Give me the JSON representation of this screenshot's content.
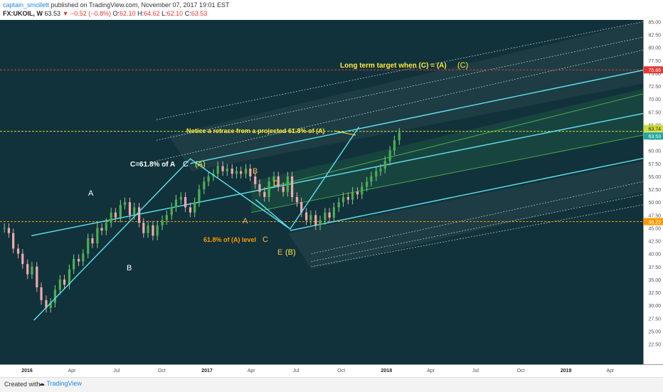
{
  "header": {
    "author": "captain_smollett",
    "published": "published on TradingView.com, November 07, 2017 19:01 EST",
    "symbol": "FX:UKOIL, W",
    "last": "63.53",
    "change": "▼ −0.52 (−0.8%)",
    "open_label": "O:",
    "open": "62.10",
    "high_label": "H:",
    "high": "64.62",
    "low_label": "L:",
    "low": "62.10",
    "close_label": "C:",
    "close": "63.53"
  },
  "footer": {
    "created_with": "Created with",
    "brand": "TradingView"
  },
  "chart_data": {
    "type": "candlestick",
    "title": "",
    "ylim": [
      22.5,
      85.0
    ],
    "y_ticks": [
      "85.00",
      "82.50",
      "80.00",
      "77.50",
      "75.00",
      "72.50",
      "70.00",
      "67.50",
      "65.00",
      "62.50",
      "60.00",
      "57.50",
      "55.00",
      "52.50",
      "50.00",
      "47.50",
      "45.00",
      "42.50",
      "40.00",
      "37.50",
      "35.00",
      "32.50",
      "30.00",
      "27.50",
      "25.00",
      "22.50"
    ],
    "x_ticks": [
      "2016",
      "Apr",
      "Jul",
      "Oct",
      "2017",
      "Apr",
      "Jul",
      "Oct",
      "2018",
      "Apr",
      "Jul",
      "Oct",
      "2019",
      "Apr"
    ],
    "price_tags": [
      {
        "label": "75.66",
        "value": 75.66,
        "color": "#e53935"
      },
      {
        "label": "63.74",
        "value": 63.74,
        "color": "#cddc39"
      },
      {
        "label": "63.53",
        "value": 63.53,
        "color": "#26a69a"
      },
      {
        "label": "46.23",
        "value": 46.23,
        "color": "#ff9800"
      }
    ],
    "horizontal_lines": [
      {
        "value": 75.66,
        "color": "#e53935"
      },
      {
        "value": 63.74,
        "color": "#cddc39"
      },
      {
        "value": 46.23,
        "color": "#ff9800"
      }
    ],
    "annotations": [
      {
        "text": "Long term target when (C) = (A)",
        "color": "#ffeb3b"
      },
      {
        "text": "(C)",
        "color": "#ffeb3b"
      },
      {
        "text": "Notice a retrace from a projected 61.8% of (A)",
        "color": "#ffeb3b"
      },
      {
        "text": "C=61.8% of A",
        "color": "#ffffff"
      },
      {
        "text": "C",
        "color": "#ffffff"
      },
      {
        "text": "(A)",
        "color": "#ffeb3b"
      },
      {
        "text": "A",
        "color": "#ffffff"
      },
      {
        "text": "B",
        "color": "#ffffff"
      },
      {
        "text": "B",
        "color": "#ffb74d"
      },
      {
        "text": "D",
        "color": "#ffb74d"
      },
      {
        "text": "A",
        "color": "#ffb74d"
      },
      {
        "text": "C",
        "color": "#ffb74d"
      },
      {
        "text": "E",
        "color": "#ffb74d"
      },
      {
        "text": "(B)",
        "color": "#ffeb3b"
      },
      {
        "text": "61.8% of (A) level",
        "color": "#ff9800"
      }
    ],
    "wave_points": [
      {
        "t": "2016-01-15",
        "v": 27.1
      },
      {
        "t": "2016-11-28",
        "v": 58.4
      },
      {
        "t": "2017-06-19",
        "v": 44.8
      },
      {
        "t": "2017-11-06",
        "v": 64.6
      }
    ],
    "series": [
      {
        "x": [
          "2015-11-16",
          "2015-12-14",
          "2016-01-18",
          "2016-02-15",
          "2016-03-14",
          "2016-04-11",
          "2016-05-09",
          "2016-06-06",
          "2016-07-04",
          "2016-08-01",
          "2016-08-29",
          "2016-09-26",
          "2016-10-24",
          "2016-11-21",
          "2016-12-19",
          "2017-01-16",
          "2017-02-13",
          "2017-03-13",
          "2017-04-10",
          "2017-05-08",
          "2017-06-05",
          "2017-06-19",
          "2017-07-17",
          "2017-08-14",
          "2017-09-11",
          "2017-10-09",
          "2017-11-06"
        ],
        "close": [
          45.0,
          37.5,
          30.5,
          35.0,
          39.5,
          45.0,
          48.5,
          50.0,
          46.0,
          43.5,
          47.5,
          50.5,
          49.0,
          52.5,
          55.5,
          55.5,
          55.8,
          51.5,
          55.0,
          50.5,
          46.5,
          45.0,
          49.0,
          51.5,
          56.5,
          58.0,
          63.5
        ]
      }
    ]
  }
}
